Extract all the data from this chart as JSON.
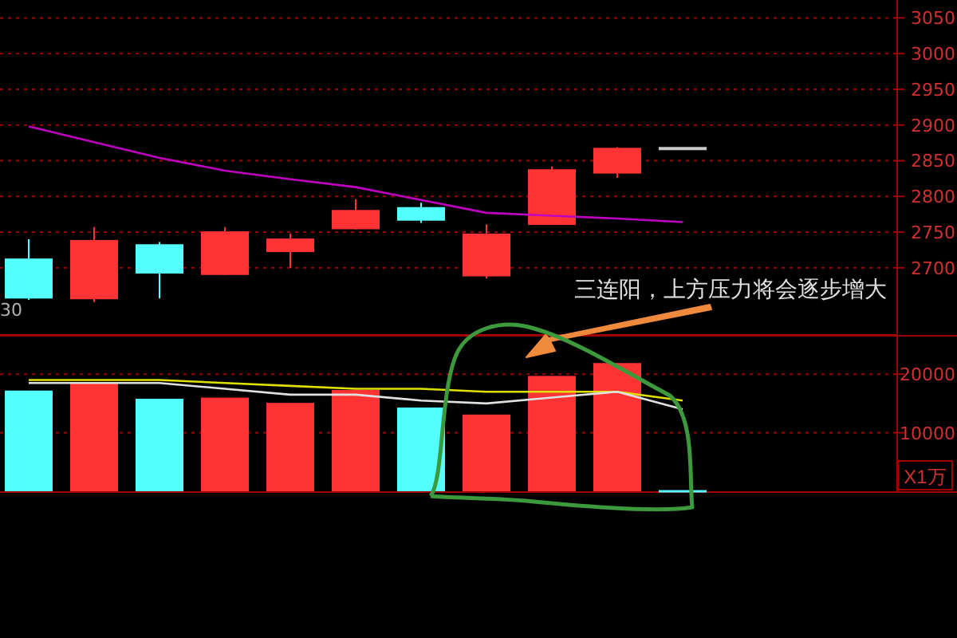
{
  "chart_data": [
    {
      "type": "candlestick",
      "categories": [
        null,
        null,
        null,
        null,
        null,
        null,
        null,
        null,
        null,
        null,
        null,
        null,
        null
      ],
      "series": [
        {
          "ohlc": [
            [
              2713,
              2740,
              2655,
              2657
            ],
            [
              2656,
              2757,
              2652,
              2739
            ],
            [
              2733,
              2736,
              2657,
              2692
            ],
            [
              2690,
              2757,
              2690,
              2751
            ],
            [
              2722,
              2748,
              2700,
              2741
            ],
            [
              2754,
              2796,
              2754,
              2781
            ],
            [
              2785,
              2791,
              2763,
              2766
            ],
            [
              2688,
              2761,
              2685,
              2748
            ],
            [
              2760,
              2842,
              2760,
              2838
            ],
            [
              2832,
              2869,
              2826,
              2868
            ],
            [
              2867,
              2867,
              2867,
              2867
            ],
            null,
            null
          ],
          "colors": [
            "#54ffff",
            "#ff3333",
            "#54ffff",
            "#ff3333",
            "#ff3333",
            "#ff3333",
            "#54ffff",
            "#ff3333",
            "#ff3333",
            "#ff3333",
            "#c8c8c8",
            null,
            null
          ]
        },
        {
          "type": "line",
          "color": "#c000c0",
          "values": [
            2898,
            2876,
            2854,
            2836,
            2824,
            2813,
            2795,
            2777,
            2773,
            2769,
            2764,
            null,
            null
          ]
        }
      ],
      "ylim": [
        2606,
        3075
      ],
      "yticks": [
        2700,
        2750,
        2800,
        2850,
        2900,
        2950,
        3000,
        3050
      ],
      "grid": "y",
      "annotations": [
        "30",
        "三连阳，上方压力将会逐步增大"
      ]
    },
    {
      "type": "bar",
      "categories": [
        null,
        null,
        null,
        null,
        null,
        null,
        null,
        null,
        null,
        null,
        null,
        null,
        null
      ],
      "series": [
        {
          "values": [
            17200,
            18600,
            15800,
            16000,
            15100,
            17300,
            14300,
            13100,
            19700,
            21900,
            200,
            null,
            null
          ],
          "colors": [
            "#54ffff",
            "#ff3333",
            "#54ffff",
            "#ff3333",
            "#ff3333",
            "#ff3333",
            "#54ffff",
            "#ff3333",
            "#ff3333",
            "#ff3333",
            "#54ffff",
            null,
            null
          ]
        },
        {
          "type": "line",
          "color": "#e0e000",
          "values": [
            19000,
            19000,
            19000,
            18500,
            18000,
            17500,
            17500,
            17000,
            17000,
            17000,
            15500,
            null,
            null
          ]
        },
        {
          "type": "line",
          "color": "#e0e0e0",
          "values": [
            18500,
            18500,
            18500,
            17500,
            16500,
            16500,
            15500,
            15000,
            16000,
            17000,
            14000,
            null,
            null
          ]
        }
      ],
      "ylim": [
        0,
        26700
      ],
      "yticks": [
        10000,
        20000
      ],
      "grid": "y",
      "annotations": [
        "X1万"
      ]
    }
  ]
}
